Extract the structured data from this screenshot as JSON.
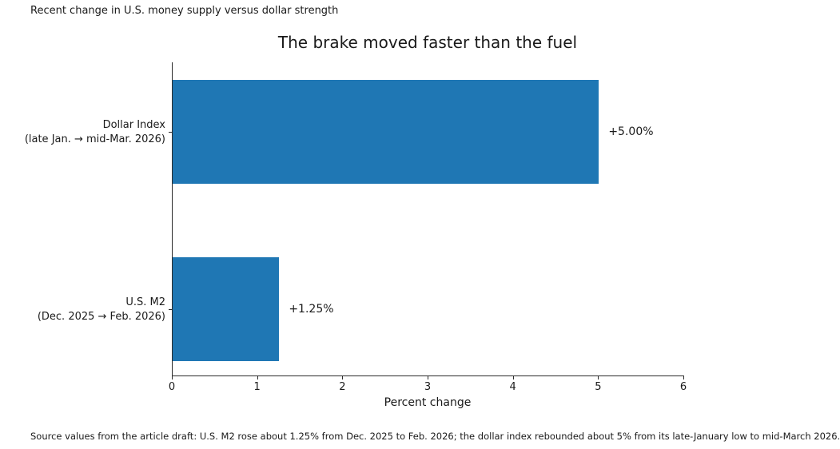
{
  "header": {
    "annotation": "Recent change in U.S. money supply versus dollar strength"
  },
  "chart_data": {
    "type": "bar",
    "orientation": "horizontal",
    "title": "The brake moved faster than the fuel",
    "xlabel": "Percent change",
    "categories": [
      [
        "Dollar Index",
        "(late Jan. → mid-Mar. 2026)"
      ],
      [
        "U.S. M2",
        "(Dec. 2025 → Feb. 2026)"
      ]
    ],
    "values": [
      5.0,
      1.25
    ],
    "value_labels": [
      "+5.00%",
      "+1.25%"
    ],
    "xlim": [
      0,
      6
    ],
    "xticks": [
      0,
      1,
      2,
      3,
      4,
      5,
      6
    ],
    "bar_color": "#1f77b4",
    "grid": false,
    "legend": null
  },
  "footer": {
    "source_note": "Source values from the article draft: U.S. M2 rose about 1.25% from Dec. 2025 to Feb. 2026; the dollar index rebounded about 5% from its late-January low to mid-March 2026."
  }
}
